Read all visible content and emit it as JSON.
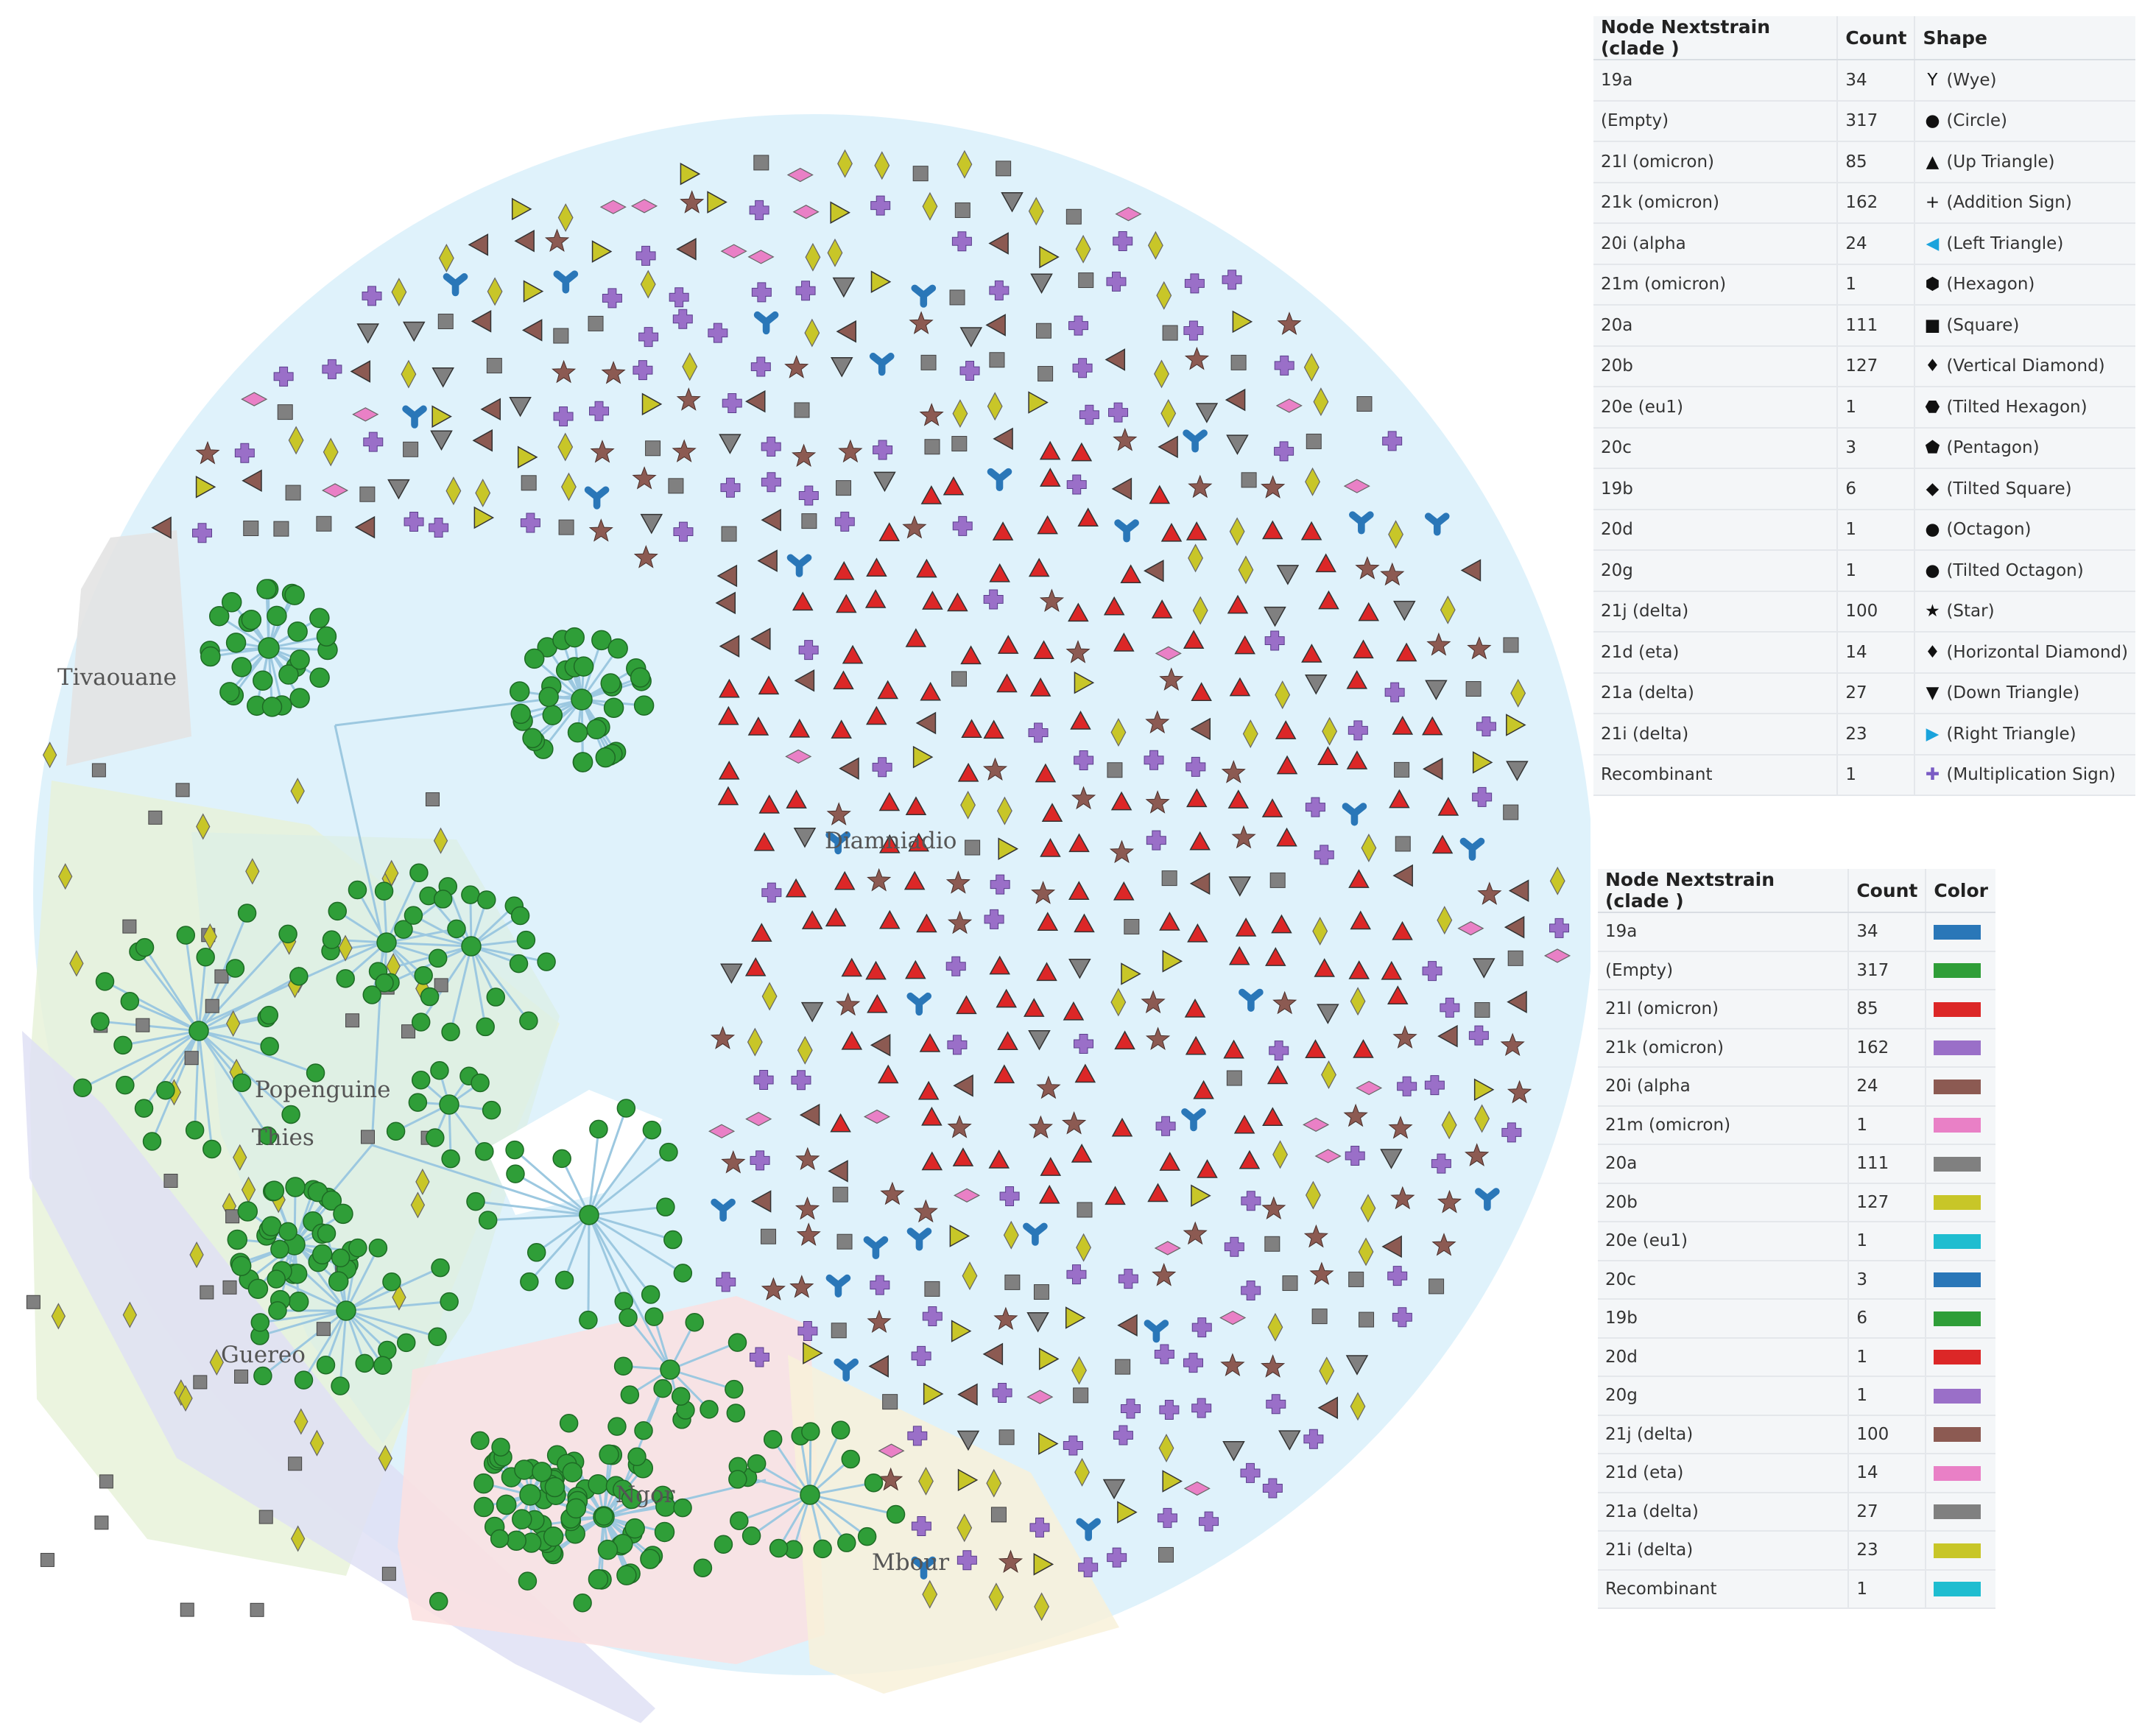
{
  "regions": [
    {
      "name": "Tivaouane",
      "color": "#e3e3e3"
    },
    {
      "name": "Diamniadio",
      "color": "#dff2fb"
    },
    {
      "name": "Popenguine",
      "color": "#e8f2d9"
    },
    {
      "name": "Thies",
      "color": "#dcefe6"
    },
    {
      "name": "Guereo",
      "color": "#dfe0f4"
    },
    {
      "name": "Ngor",
      "color": "#fbe0e0"
    },
    {
      "name": "Mbour",
      "color": "#f8f1d9"
    }
  ],
  "shape_legend": {
    "headers": [
      "Node Nextstrain (clade )",
      "Count",
      "Shape"
    ],
    "rows": [
      {
        "clade": "19a",
        "count": "34",
        "shape": "(Wye)",
        "icon": "wye-icon",
        "glyph": "Y"
      },
      {
        "clade": "(Empty)",
        "count": "317",
        "shape": "(Circle)",
        "icon": "circle-icon",
        "glyph": "●"
      },
      {
        "clade": "21l (omicron)",
        "count": "85",
        "shape": "(Up Triangle)",
        "icon": "up-triangle-icon",
        "glyph": "▲"
      },
      {
        "clade": "21k (omicron)",
        "count": "162",
        "shape": "(Addition Sign)",
        "icon": "addition-sign-icon",
        "glyph": "+"
      },
      {
        "clade": "20i (alpha",
        "count": "24",
        "shape": "(Left Triangle)",
        "icon": "left-triangle-icon",
        "glyph": "◀"
      },
      {
        "clade": "21m (omicron)",
        "count": "1",
        "shape": "(Hexagon)",
        "icon": "hexagon-icon",
        "glyph": "⬢"
      },
      {
        "clade": "20a",
        "count": "111",
        "shape": "(Square)",
        "icon": "square-icon",
        "glyph": "■"
      },
      {
        "clade": "20b",
        "count": "127",
        "shape": "(Vertical Diamond)",
        "icon": "vertical-diamond-icon",
        "glyph": "♦"
      },
      {
        "clade": "20e (eu1)",
        "count": "1",
        "shape": "(Tilted Hexagon)",
        "icon": "tilted-hexagon-icon",
        "glyph": "⬣"
      },
      {
        "clade": "20c",
        "count": "3",
        "shape": "(Pentagon)",
        "icon": "pentagon-icon",
        "glyph": "⬟"
      },
      {
        "clade": "19b",
        "count": "6",
        "shape": "(Tilted Square)",
        "icon": "tilted-square-icon",
        "glyph": "◆"
      },
      {
        "clade": "20d",
        "count": "1",
        "shape": "(Octagon)",
        "icon": "octagon-icon",
        "glyph": "●"
      },
      {
        "clade": "20g",
        "count": "1",
        "shape": "(Tilted Octagon)",
        "icon": "tilted-octagon-icon",
        "glyph": "●"
      },
      {
        "clade": "21j (delta)",
        "count": "100",
        "shape": "(Star)",
        "icon": "star-icon",
        "glyph": "★"
      },
      {
        "clade": "21d (eta)",
        "count": "14",
        "shape": "(Horizontal Diamond)",
        "icon": "horizontal-diamond-icon",
        "glyph": "♦"
      },
      {
        "clade": "21a (delta)",
        "count": "27",
        "shape": "(Down Triangle)",
        "icon": "down-triangle-icon",
        "glyph": "▼"
      },
      {
        "clade": "21i (delta)",
        "count": "23",
        "shape": "(Right Triangle)",
        "icon": "right-triangle-icon",
        "glyph": "▶"
      },
      {
        "clade": "Recombinant",
        "count": "1",
        "shape": "(Multiplication Sign)",
        "icon": "multiplication-sign-icon",
        "glyph": "✚"
      }
    ]
  },
  "color_legend": {
    "headers": [
      "Node Nextstrain (clade )",
      "Count",
      "Color"
    ],
    "rows": [
      {
        "clade": "19a",
        "count": "34",
        "color": "#2a77b8"
      },
      {
        "clade": "(Empty)",
        "count": "317",
        "color": "#2f9e38"
      },
      {
        "clade": "21l (omicron)",
        "count": "85",
        "color": "#dc2727"
      },
      {
        "clade": "21k (omicron)",
        "count": "162",
        "color": "#9a6fc8"
      },
      {
        "clade": "20i (alpha",
        "count": "24",
        "color": "#8c5a52"
      },
      {
        "clade": "21m (omicron)",
        "count": "1",
        "color": "#e980c6"
      },
      {
        "clade": "20a",
        "count": "111",
        "color": "#808080"
      },
      {
        "clade": "20b",
        "count": "127",
        "color": "#c8c628"
      },
      {
        "clade": "20e (eu1)",
        "count": "1",
        "color": "#1fbdd0"
      },
      {
        "clade": "20c",
        "count": "3",
        "color": "#2a77b8"
      },
      {
        "clade": "19b",
        "count": "6",
        "color": "#2f9e38"
      },
      {
        "clade": "20d",
        "count": "1",
        "color": "#dc2727"
      },
      {
        "clade": "20g",
        "count": "1",
        "color": "#9a6fc8"
      },
      {
        "clade": "21j (delta)",
        "count": "100",
        "color": "#8c5a52"
      },
      {
        "clade": "21d (eta)",
        "count": "14",
        "color": "#e980c6"
      },
      {
        "clade": "21a (delta)",
        "count": "27",
        "color": "#808080"
      },
      {
        "clade": "21i (delta)",
        "count": "23",
        "color": "#c8c628"
      },
      {
        "clade": "Recombinant",
        "count": "1",
        "color": "#1fbdd0"
      }
    ]
  },
  "node_colors": {
    "triangle": "#dc2727",
    "plus": "#9a6fc8",
    "star": "#8c5a52",
    "square": "#808080",
    "diamond": "#c8c628",
    "wye": "#2a77b8",
    "circle": "#2f9e38",
    "down_triangle": "#808080",
    "left_triangle": "#8c5a52",
    "right_triangle": "#c8c628",
    "h_diamond": "#e980c6",
    "edge": "#9cc8e0"
  }
}
